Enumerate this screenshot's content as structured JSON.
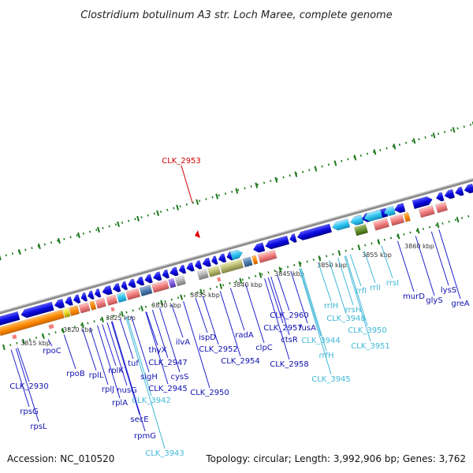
{
  "title": "Clostridium botulinum A3 str. Loch Maree, complete genome",
  "footer": {
    "accession": "Accession: NC_010520",
    "topology": "Topology: circular; Length: 3,992,906 bp; Genes: 3,762"
  },
  "colors": {
    "backbone": "#8c8c8c",
    "gene_blue": "#0a0ae0",
    "gene_cyan": "#33c4f0",
    "rna_label": "#40b8d8",
    "highlight": "#cc0000",
    "tick_green": "#1e7a1e",
    "orange": "#ff8a00",
    "salmon": "#f08080"
  },
  "scale_labels": [
    "3815 kbp",
    "3820 kbp",
    "3825 kbp",
    "3830 kbp",
    "3835 kbp",
    "3840 kbp",
    "3845 kbp",
    "3850 kbp",
    "3855 kbp",
    "3860 kbp"
  ],
  "highlight_gene": "CLK_2953",
  "gene_labels_blue": [
    "CLK_2930",
    "rpsG",
    "rpsL",
    "rpoC",
    "rpoB",
    "rplL",
    "rplJ",
    "rplA",
    "rplK",
    "nusG",
    "secE",
    "rpmG",
    "tuf",
    "sigH",
    "thyX",
    "CLK_2947",
    "CLK_2945",
    "cysS",
    "ilvA",
    "ispD",
    "CLK_2950",
    "CLK_2952",
    "CLK_2954",
    "radA",
    "clpC",
    "CLK_2957",
    "CLK_2958",
    "ctsR",
    "CLK_2960",
    "fusA",
    "murD",
    "glyS",
    "lysS",
    "greA"
  ],
  "rna_labels": [
    "CLK_3942",
    "CLK_3943",
    "CLK_3944",
    "CLK_3945",
    "rrfH",
    "rrlH",
    "rrsH",
    "rrfI",
    "rrlI",
    "rrsI",
    "CLK_3948",
    "CLK_3950",
    "CLK_3951"
  ]
}
